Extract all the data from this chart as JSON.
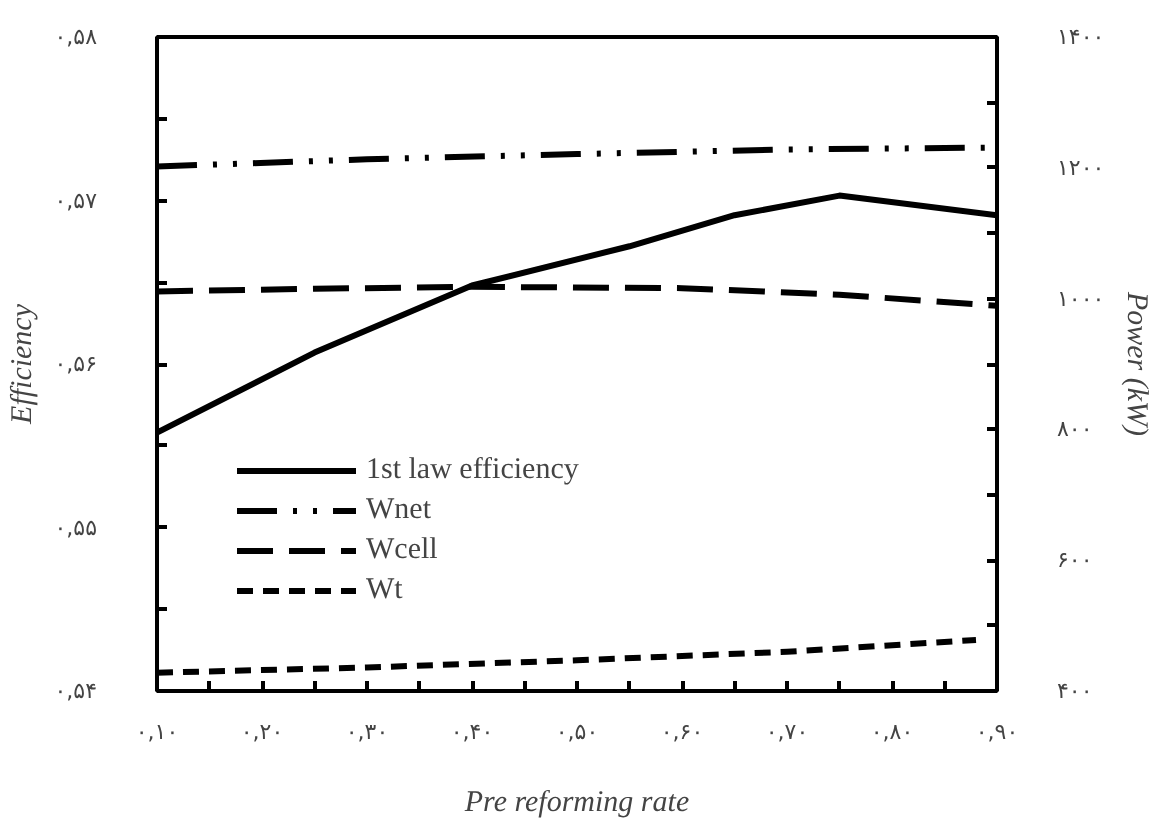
{
  "chart_data": {
    "type": "line",
    "xlabel": "Pre reforming rate",
    "ylabel": "Efficiency",
    "y2label": "Power (kW)",
    "xlim": [
      0.1,
      0.9
    ],
    "ylim": [
      0.54,
      0.58
    ],
    "y2lim": [
      400,
      1400
    ],
    "xticks": [
      {
        "value": 0.1,
        "label": "۰,۱۰"
      },
      {
        "value": 0.15,
        "label": null
      },
      {
        "value": 0.2,
        "label": "۰,۲۰"
      },
      {
        "value": 0.25,
        "label": null
      },
      {
        "value": 0.3,
        "label": "۰,۳۰"
      },
      {
        "value": 0.35,
        "label": null
      },
      {
        "value": 0.4,
        "label": "۰,۴۰"
      },
      {
        "value": 0.45,
        "label": null
      },
      {
        "value": 0.5,
        "label": "۰,۵۰"
      },
      {
        "value": 0.55,
        "label": null
      },
      {
        "value": 0.6,
        "label": "۰,۶۰"
      },
      {
        "value": 0.65,
        "label": null
      },
      {
        "value": 0.7,
        "label": "۰,۷۰"
      },
      {
        "value": 0.75,
        "label": null
      },
      {
        "value": 0.8,
        "label": "۰,۸۰"
      },
      {
        "value": 0.85,
        "label": null
      },
      {
        "value": 0.9,
        "label": "۰,۹۰"
      }
    ],
    "yticks": [
      {
        "value": 0.54,
        "label": "۰,۵۴"
      },
      {
        "value": 0.545,
        "label": null
      },
      {
        "value": 0.55,
        "label": "۰,۵۵"
      },
      {
        "value": 0.555,
        "label": null
      },
      {
        "value": 0.56,
        "label": "۰,۵۶"
      },
      {
        "value": 0.565,
        "label": null
      },
      {
        "value": 0.57,
        "label": "۰,۵۷"
      },
      {
        "value": 0.575,
        "label": null
      },
      {
        "value": 0.58,
        "label": "۰,۵۸"
      }
    ],
    "y2ticks": [
      {
        "value": 400,
        "label": "۴۰۰"
      },
      {
        "value": 500,
        "label": null
      },
      {
        "value": 600,
        "label": "۶۰۰"
      },
      {
        "value": 700,
        "label": null
      },
      {
        "value": 800,
        "label": "۸۰۰"
      },
      {
        "value": 900,
        "label": null
      },
      {
        "value": 1000,
        "label": "۱۰۰۰"
      },
      {
        "value": 1100,
        "label": null
      },
      {
        "value": 1200,
        "label": "۱۲۰۰"
      },
      {
        "value": 1300,
        "label": null
      },
      {
        "value": 1400,
        "label": "۱۴۰۰"
      }
    ],
    "grid": false,
    "legend": "bottom left",
    "series": [
      {
        "name": "1st law efficiency",
        "color": "#000000",
        "line_style": "solid",
        "x": [
          0.1,
          0.25,
          0.4,
          0.55,
          0.65,
          0.75,
          0.9
        ],
        "values": [
          0.5558,
          0.5607,
          0.5648,
          0.5672,
          0.5691,
          0.5703,
          0.5691
        ]
      },
      {
        "name": "Wnet",
        "color": "#000000",
        "line_style": "dashdotdot",
        "axis": "y2",
        "x": [
          0.1,
          0.3,
          0.5,
          0.7,
          0.9
        ],
        "values": [
          1202,
          1213,
          1221,
          1228,
          1231
        ]
      },
      {
        "name": "Wcell",
        "color": "#000000",
        "line_style": "longdash",
        "axis": "y2",
        "x": [
          0.1,
          0.25,
          0.4,
          0.6,
          0.75,
          0.9
        ],
        "values": [
          1011,
          1015,
          1018,
          1016,
          1006,
          989
        ]
      },
      {
        "name": "Wt",
        "color": "#000000",
        "line_style": "dashed",
        "axis": "y2",
        "x": [
          0.1,
          0.3,
          0.5,
          0.7,
          0.88
        ],
        "values": [
          428,
          436,
          447,
          460,
          478
        ]
      }
    ]
  }
}
